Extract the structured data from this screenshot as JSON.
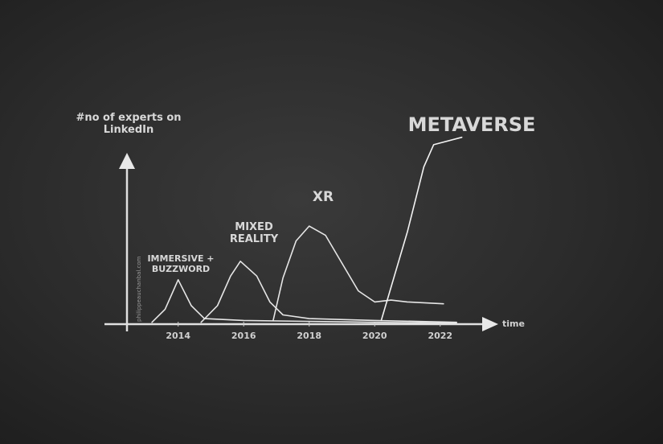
{
  "chart_data": {
    "type": "line",
    "y_label": "#no of experts on LinkedIn",
    "x_label": "time",
    "credit": "philippeauchanbal.com",
    "xlim": [
      2011.75,
      2023.65
    ],
    "xticks": [
      2014,
      2016,
      2018,
      2020,
      2022
    ],
    "ylim": [
      0,
      105
    ],
    "grid": false,
    "series": [
      {
        "name": "IMMERSIVE + BUZZWORD",
        "color": "#e6e6e6",
        "x": [
          2013.2,
          2013.6,
          2014,
          2014.4,
          2014.8,
          2016,
          2018,
          2020,
          2022.5
        ],
        "values": [
          1,
          8,
          24,
          10,
          3,
          2,
          1.5,
          1,
          0.5
        ]
      },
      {
        "name": "MIXED REALITY",
        "color": "#e6e6e6",
        "x": [
          2014.7,
          2015.2,
          2015.6,
          2015.9,
          2016.4,
          2016.8,
          2017.2,
          2018,
          2020,
          2022.5
        ],
        "values": [
          1,
          10,
          26,
          34,
          26,
          12,
          5,
          3,
          2,
          1
        ]
      },
      {
        "name": "XR",
        "color": "#e6e6e6",
        "x": [
          2016.9,
          2017.2,
          2017.6,
          2018,
          2018.5,
          2019,
          2019.5,
          2020,
          2020.5,
          2021,
          2022.1
        ],
        "values": [
          2,
          25,
          45,
          53,
          48,
          33,
          18,
          12,
          13,
          12,
          11
        ]
      },
      {
        "name": "METAVERSE",
        "color": "#f2f2f2",
        "x": [
          2020.2,
          2020.5,
          2021,
          2021.5,
          2021.8,
          2022.66
        ],
        "values": [
          2,
          20,
          50,
          85,
          97,
          101
        ]
      }
    ]
  }
}
